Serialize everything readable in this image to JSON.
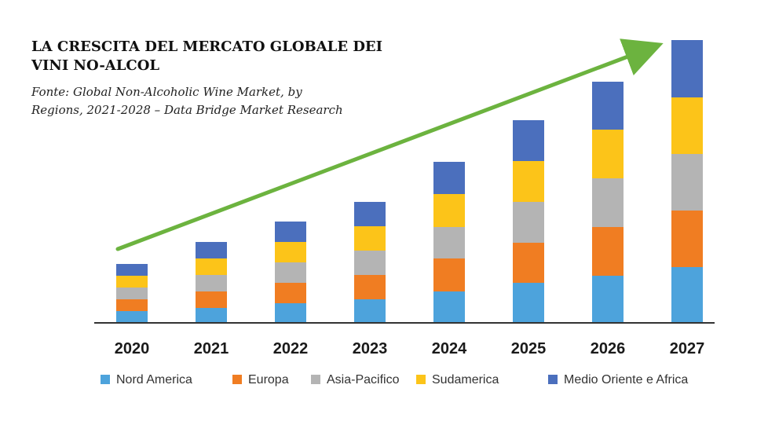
{
  "chart_data": {
    "type": "bar",
    "stacked": true,
    "title": "LA CRESCITA DEL MERCATO GLOBALE DEI VINI NO-ALCOL",
    "subtitle": "Fonte: Global  Non-Alcoholic Wine Market, by Regions, 2021-2028 – Data Bridge Market Research",
    "categories": [
      "2020",
      "2021",
      "2022",
      "2023",
      "2024",
      "2025",
      "2026",
      "2027"
    ],
    "series": [
      {
        "name": "Nord America",
        "color": "#4da3dc",
        "values": [
          15,
          19,
          25,
          30,
          40,
          51,
          60,
          71
        ]
      },
      {
        "name": "Europa",
        "color": "#f07d22",
        "values": [
          15,
          21,
          26,
          31,
          42,
          51,
          62,
          72
        ]
      },
      {
        "name": "Asia-Pacifico",
        "color": "#b4b4b4",
        "values": [
          15,
          21,
          26,
          31,
          40,
          52,
          62,
          72
        ]
      },
      {
        "name": "Sudamerica",
        "color": "#fcc419",
        "values": [
          15,
          21,
          26,
          31,
          42,
          52,
          62,
          72
        ]
      },
      {
        "name": "Medio Oriente e Africa",
        "color": "#4b6fbd",
        "values": [
          15,
          21,
          26,
          31,
          41,
          52,
          61,
          73
        ]
      }
    ],
    "ylim": [
      0,
      360
    ],
    "grid": false,
    "legend": "bottom",
    "trend_arrow_color": "#6cb33f"
  }
}
